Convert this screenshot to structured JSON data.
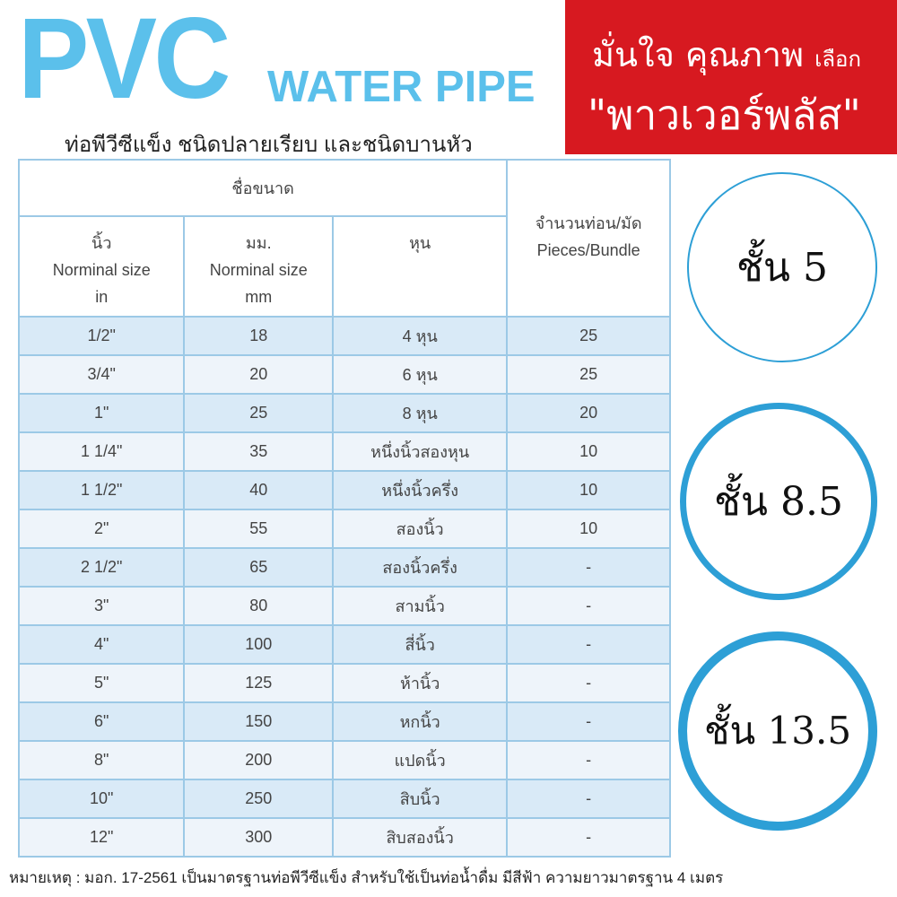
{
  "header": {
    "title": "PVC",
    "subtitle": "WATER PIPE",
    "description": "ท่อพีวีซีแข็ง ชนิดปลายเรียบ และชนิดบานหัว"
  },
  "banner": {
    "line1_main": "มั่นใจ คุณภาพ",
    "line1_small": "เลือก",
    "line2": "\"พาวเวอร์พลัส\"",
    "color": "#d71920"
  },
  "table": {
    "group_header": "ชื่อขนาด",
    "col_inch": [
      "นิ้ว",
      "Norminal size",
      "in"
    ],
    "col_mm": [
      "มม.",
      "Norminal size",
      "mm"
    ],
    "col_hun": "หุน",
    "col_pieces": [
      "จำนวนท่อน/มัด",
      "Pieces/Bundle"
    ],
    "rows": [
      [
        "1/2\"",
        "18",
        "4 หุน",
        "25"
      ],
      [
        "3/4\"",
        "20",
        "6 หุน",
        "25"
      ],
      [
        "1\"",
        "25",
        "8 หุน",
        "20"
      ],
      [
        "1 1/4\"",
        "35",
        "หนึ่งนิ้วสองหุน",
        "10"
      ],
      [
        "1 1/2\"",
        "40",
        "หนึ่งนิ้วครึ่ง",
        "10"
      ],
      [
        "2\"",
        "55",
        "สองนิ้ว",
        "10"
      ],
      [
        "2 1/2\"",
        "65",
        "สองนิ้วครึ่ง",
        "-"
      ],
      [
        "3\"",
        "80",
        "สามนิ้ว",
        "-"
      ],
      [
        "4\"",
        "100",
        "สี่นิ้ว",
        "-"
      ],
      [
        "5\"",
        "125",
        "ห้านิ้ว",
        "-"
      ],
      [
        "6\"",
        "150",
        "หกนิ้ว",
        "-"
      ],
      [
        "8\"",
        "200",
        "แปดนิ้ว",
        "-"
      ],
      [
        "10\"",
        "250",
        "สิบนิ้ว",
        "-"
      ],
      [
        "12\"",
        "300",
        "สิบสองนิ้ว",
        "-"
      ]
    ]
  },
  "classes": [
    "ชั้น 5",
    "ชั้น 8.5",
    "ชั้น 13.5"
  ],
  "note": "หมายเหตุ :  มอก. 17-2561 เป็นมาตรฐานท่อพีวีซีแข็ง สำหรับใช้เป็นท่อน้ำดื่ม มีสีฟ้า ความยาวมาตรฐาน 4 เมตร",
  "accent": "#5bc0eb"
}
